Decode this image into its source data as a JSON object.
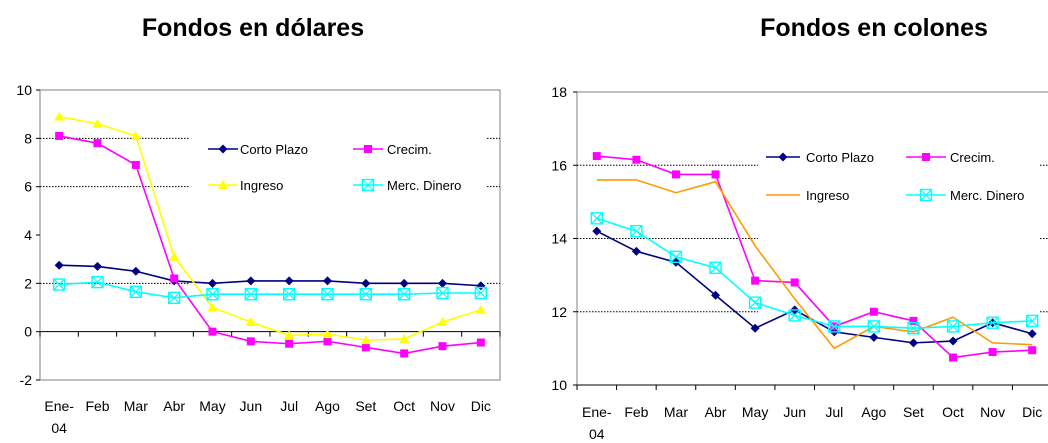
{
  "chart_data": [
    {
      "type": "line",
      "title": "Fondos en dólares",
      "categories": [
        "Ene-04",
        "Feb",
        "Mar",
        "Abr",
        "May",
        "Jun",
        "Jul",
        "Ago",
        "Set",
        "Oct",
        "Nov",
        "Dic"
      ],
      "category_lines": [
        [
          "Ene-",
          "04"
        ],
        [
          "Feb"
        ],
        [
          "Mar"
        ],
        [
          "Abr"
        ],
        [
          "May"
        ],
        [
          "Jun"
        ],
        [
          "Jul"
        ],
        [
          "Ago"
        ],
        [
          "Set"
        ],
        [
          "Oct"
        ],
        [
          "Nov"
        ],
        [
          "Dic"
        ]
      ],
      "ylim": [
        -2,
        10
      ],
      "yticks": [
        -2,
        0,
        2,
        4,
        6,
        8,
        10
      ],
      "grid": "horizontal dotted at 2, 6, 8",
      "legend_placement": "inside, upper-right",
      "series": [
        {
          "name": "Corto Plazo",
          "color": "#000080",
          "marker": "diamond",
          "values": [
            2.75,
            2.7,
            2.5,
            2.1,
            2.0,
            2.1,
            2.1,
            2.1,
            2.0,
            2.0,
            2.0,
            1.9
          ]
        },
        {
          "name": "Crecim.",
          "color": "#ff00ff",
          "marker": "square",
          "values": [
            8.1,
            7.8,
            6.9,
            2.2,
            0.0,
            -0.4,
            -0.5,
            -0.4,
            -0.65,
            -0.9,
            -0.6,
            -0.45
          ]
        },
        {
          "name": "Ingreso",
          "color": "#ffff00",
          "marker": "triangle",
          "values": [
            8.9,
            8.6,
            8.1,
            3.1,
            1.0,
            0.4,
            -0.15,
            -0.1,
            -0.35,
            -0.3,
            0.4,
            0.9
          ]
        },
        {
          "name": "Merc. Dinero",
          "color": "#00ffff",
          "marker": "xsquare",
          "values": [
            1.95,
            2.05,
            1.65,
            1.4,
            1.55,
            1.55,
            1.55,
            1.55,
            1.55,
            1.55,
            1.6,
            1.6
          ]
        }
      ]
    },
    {
      "type": "line",
      "title": "Fondos en colones",
      "categories": [
        "Ene-04",
        "Feb",
        "Mar",
        "Abr",
        "May",
        "Jun",
        "Jul",
        "Ago",
        "Set",
        "Oct",
        "Nov",
        "Dic"
      ],
      "category_lines": [
        [
          "Ene-",
          "04"
        ],
        [
          "Feb"
        ],
        [
          "Mar"
        ],
        [
          "Abr"
        ],
        [
          "May"
        ],
        [
          "Jun"
        ],
        [
          "Jul"
        ],
        [
          "Ago"
        ],
        [
          "Set"
        ],
        [
          "Oct"
        ],
        [
          "Nov"
        ],
        [
          "Dic"
        ]
      ],
      "ylim": [
        10,
        18
      ],
      "yticks": [
        10,
        12,
        14,
        16,
        18
      ],
      "grid": "horizontal dotted at 12, 14, 16",
      "legend_placement": "inside, upper-right",
      "series": [
        {
          "name": "Corto Plazo",
          "color": "#000080",
          "marker": "diamond",
          "values": [
            14.2,
            13.65,
            13.35,
            12.45,
            11.55,
            12.05,
            11.45,
            11.3,
            11.15,
            11.2,
            11.7,
            11.4
          ]
        },
        {
          "name": "Crecim.",
          "color": "#ff00ff",
          "marker": "square",
          "values": [
            16.25,
            16.15,
            15.75,
            15.75,
            12.85,
            12.8,
            11.6,
            12.0,
            11.75,
            10.75,
            10.9,
            10.95
          ]
        },
        {
          "name": "Ingreso",
          "color": "#ff9900",
          "marker": "none",
          "values": [
            15.6,
            15.6,
            15.25,
            15.55,
            13.8,
            12.35,
            11.0,
            11.6,
            11.45,
            11.85,
            11.15,
            11.1
          ]
        },
        {
          "name": "Merc. Dinero",
          "color": "#00ffff",
          "marker": "xsquare",
          "values": [
            14.55,
            14.2,
            13.5,
            13.2,
            12.25,
            11.9,
            11.6,
            11.6,
            11.55,
            11.6,
            11.7,
            11.75
          ]
        }
      ]
    }
  ]
}
